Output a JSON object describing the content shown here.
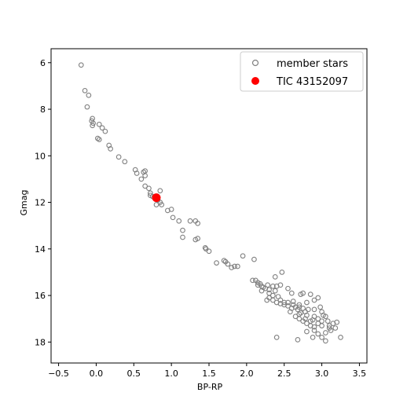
{
  "chart_data": {
    "type": "scatter",
    "xlabel": "BP-RP",
    "ylabel": "Gmag",
    "xlim": [
      -0.6,
      3.6
    ],
    "ylim": [
      18.9,
      5.4
    ],
    "y_inverted": true,
    "grid": false,
    "legend_position": "top-right",
    "x_ticks": [
      -0.5,
      0.0,
      0.5,
      1.0,
      1.5,
      2.0,
      2.5,
      3.0,
      3.5
    ],
    "x_tick_labels": [
      "−0.5",
      "0.0",
      "0.5",
      "1.0",
      "1.5",
      "2.0",
      "2.5",
      "3.0",
      "3.5"
    ],
    "y_ticks": [
      6,
      8,
      10,
      12,
      14,
      16,
      18
    ],
    "y_tick_labels": [
      "6",
      "8",
      "10",
      "12",
      "14",
      "16",
      "18"
    ],
    "colors": {
      "member": "#808080",
      "target": "#ff0000",
      "axis": "#000000"
    },
    "series": [
      {
        "name": "member stars",
        "marker": "hollow-circle",
        "points": [
          [
            -0.2,
            6.1
          ],
          [
            -0.15,
            7.2
          ],
          [
            -0.1,
            7.4
          ],
          [
            -0.12,
            7.9
          ],
          [
            -0.05,
            8.4
          ],
          [
            -0.06,
            8.5
          ],
          [
            -0.04,
            8.6
          ],
          [
            -0.05,
            8.7
          ],
          [
            0.04,
            8.65
          ],
          [
            0.08,
            8.8
          ],
          [
            0.12,
            8.95
          ],
          [
            0.02,
            9.25
          ],
          [
            0.04,
            9.3
          ],
          [
            0.17,
            9.55
          ],
          [
            0.19,
            9.7
          ],
          [
            0.3,
            10.05
          ],
          [
            0.38,
            10.25
          ],
          [
            0.52,
            10.6
          ],
          [
            0.54,
            10.75
          ],
          [
            0.63,
            10.7
          ],
          [
            0.65,
            10.65
          ],
          [
            0.65,
            10.85
          ],
          [
            0.6,
            11.0
          ],
          [
            0.65,
            11.3
          ],
          [
            0.7,
            11.4
          ],
          [
            0.72,
            11.6
          ],
          [
            0.72,
            11.7
          ],
          [
            0.75,
            11.75
          ],
          [
            0.82,
            11.9
          ],
          [
            0.85,
            11.5
          ],
          [
            0.85,
            12.0
          ],
          [
            0.87,
            12.1
          ],
          [
            0.8,
            12.1
          ],
          [
            0.95,
            12.35
          ],
          [
            1.0,
            12.3
          ],
          [
            1.02,
            12.65
          ],
          [
            1.1,
            12.8
          ],
          [
            1.15,
            13.2
          ],
          [
            1.15,
            13.5
          ],
          [
            1.25,
            12.8
          ],
          [
            1.32,
            12.8
          ],
          [
            1.35,
            12.9
          ],
          [
            1.32,
            13.6
          ],
          [
            1.35,
            13.55
          ],
          [
            1.45,
            13.95
          ],
          [
            1.46,
            14.0
          ],
          [
            1.5,
            14.1
          ],
          [
            1.6,
            14.6
          ],
          [
            1.7,
            14.5
          ],
          [
            1.72,
            14.55
          ],
          [
            1.75,
            14.65
          ],
          [
            1.8,
            14.8
          ],
          [
            1.84,
            14.75
          ],
          [
            1.88,
            14.75
          ],
          [
            1.95,
            14.3
          ],
          [
            2.1,
            14.45
          ],
          [
            2.08,
            15.35
          ],
          [
            2.12,
            15.35
          ],
          [
            2.15,
            15.45
          ],
          [
            2.18,
            15.5
          ],
          [
            2.2,
            15.6
          ],
          [
            2.25,
            15.7
          ],
          [
            2.22,
            15.65
          ],
          [
            2.3,
            15.9
          ],
          [
            2.3,
            16.1
          ],
          [
            2.35,
            16.2
          ],
          [
            2.28,
            15.55
          ],
          [
            2.35,
            15.6
          ],
          [
            2.4,
            15.6
          ],
          [
            2.45,
            15.55
          ],
          [
            2.47,
            15.0
          ],
          [
            2.38,
            15.2
          ],
          [
            2.38,
            15.8
          ],
          [
            2.4,
            16.3
          ],
          [
            2.45,
            16.2
          ],
          [
            2.5,
            16.3
          ],
          [
            2.55,
            16.3
          ],
          [
            2.55,
            15.7
          ],
          [
            2.6,
            15.9
          ],
          [
            2.62,
            16.4
          ],
          [
            2.65,
            16.5
          ],
          [
            2.68,
            16.6
          ],
          [
            2.7,
            16.8
          ],
          [
            2.72,
            15.95
          ],
          [
            2.75,
            15.9
          ],
          [
            2.78,
            16.7
          ],
          [
            2.8,
            16.85
          ],
          [
            2.85,
            15.95
          ],
          [
            2.9,
            16.2
          ],
          [
            2.95,
            16.1
          ],
          [
            2.98,
            16.5
          ],
          [
            3.0,
            16.7
          ],
          [
            3.05,
            16.9
          ],
          [
            3.08,
            17.1
          ],
          [
            3.1,
            17.3
          ],
          [
            3.12,
            17.5
          ],
          [
            3.15,
            17.2
          ],
          [
            3.18,
            17.4
          ],
          [
            3.2,
            17.15
          ],
          [
            3.25,
            17.8
          ],
          [
            2.7,
            17.0
          ],
          [
            2.75,
            17.1
          ],
          [
            2.8,
            17.2
          ],
          [
            2.85,
            17.3
          ],
          [
            2.9,
            17.5
          ],
          [
            2.95,
            17.65
          ],
          [
            3.0,
            17.8
          ],
          [
            3.05,
            17.95
          ],
          [
            2.88,
            17.8
          ],
          [
            2.68,
            17.9
          ],
          [
            2.4,
            17.8
          ],
          [
            2.82,
            16.6
          ],
          [
            2.9,
            16.9
          ],
          [
            2.88,
            17.05
          ],
          [
            2.75,
            16.55
          ],
          [
            2.7,
            16.4
          ],
          [
            2.65,
            16.9
          ],
          [
            2.62,
            16.25
          ],
          [
            2.6,
            16.55
          ],
          [
            2.55,
            16.45
          ],
          [
            2.5,
            16.4
          ],
          [
            2.45,
            16.35
          ],
          [
            2.42,
            16.05
          ],
          [
            2.35,
            16.0
          ],
          [
            2.3,
            15.75
          ],
          [
            2.27,
            16.2
          ],
          [
            2.2,
            15.8
          ],
          [
            2.15,
            15.55
          ],
          [
            2.95,
            17.0
          ],
          [
            3.0,
            17.3
          ],
          [
            3.05,
            17.6
          ],
          [
            3.1,
            17.4
          ],
          [
            2.8,
            17.55
          ],
          [
            2.85,
            17.1
          ],
          [
            2.95,
            17.2
          ],
          [
            3.0,
            17.1
          ],
          [
            2.9,
            16.6
          ],
          [
            2.8,
            16.3
          ],
          [
            2.72,
            16.75
          ],
          [
            2.78,
            17.0
          ],
          [
            2.9,
            17.35
          ],
          [
            3.02,
            16.85
          ],
          [
            2.58,
            16.7
          ],
          [
            2.7,
            16.5
          ]
        ]
      },
      {
        "name": "TIC 43152097",
        "marker": "filled-circle",
        "points": [
          [
            0.8,
            11.8
          ]
        ]
      }
    ]
  }
}
